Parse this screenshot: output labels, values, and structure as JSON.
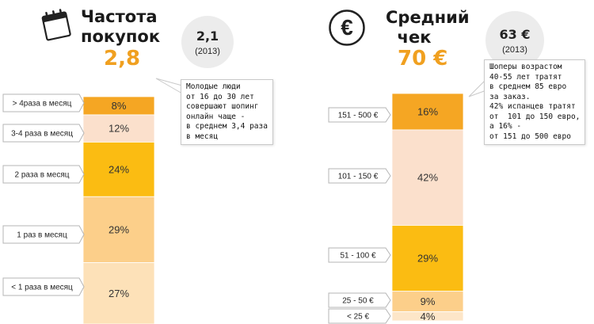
{
  "colors": {
    "accent": "#f0a020",
    "note_border": "#c9c9c9",
    "circle_bg": "#ececec"
  },
  "left": {
    "title_line1": "Частота",
    "title_line2": "покупок",
    "big_value": "2,8",
    "circle_value": "2,1",
    "circle_year": "(2013)",
    "icon": "calendar-icon",
    "note": "Молодые люди\nот 16 до 30 лет\nсовершают шопинг\nонлайн чаще -\nв среднем 3,4 раза\nв месяц"
  },
  "right": {
    "title_line1": "Средний",
    "title_line2": "чек",
    "big_value": "70 €",
    "circle_value": "63 €",
    "circle_year": "(2013)",
    "icon": "euro-icon",
    "icon_glyph": "€",
    "note": "Шоперы возрастом\n40-55 лет тратят\nв среднем 85 евро\nза заказ.\n42% испанцев тратят\nот  101 до 150 евро,\nа 16% -\nот 151 до 500 евро"
  },
  "chart_data": [
    {
      "type": "bar",
      "stacked": true,
      "categories": [
        "> 4раза в месяц",
        "3-4 раза в месяц",
        "2 раза в месяц",
        "1 раз в месяц",
        "< 1 раза в месяц"
      ],
      "values": [
        8,
        12,
        24,
        29,
        27
      ],
      "labels": [
        "8%",
        "12%",
        "24%",
        "29%",
        "27%"
      ],
      "colors": [
        "#f5a623",
        "#fbe0cc",
        "#fbbc12",
        "#fccf8a",
        "#fde1b8"
      ]
    },
    {
      "type": "bar",
      "stacked": true,
      "categories": [
        "151 - 500 €",
        "101 - 150 €",
        "51 - 100 €",
        "25 - 50 €",
        "< 25 €"
      ],
      "values": [
        16,
        42,
        29,
        9,
        4
      ],
      "labels": [
        "16%",
        "42%",
        "29%",
        "9%",
        "4%"
      ],
      "colors": [
        "#f5a623",
        "#fbe0cc",
        "#fbbc12",
        "#fccf8a",
        "#fde6c8"
      ]
    }
  ]
}
